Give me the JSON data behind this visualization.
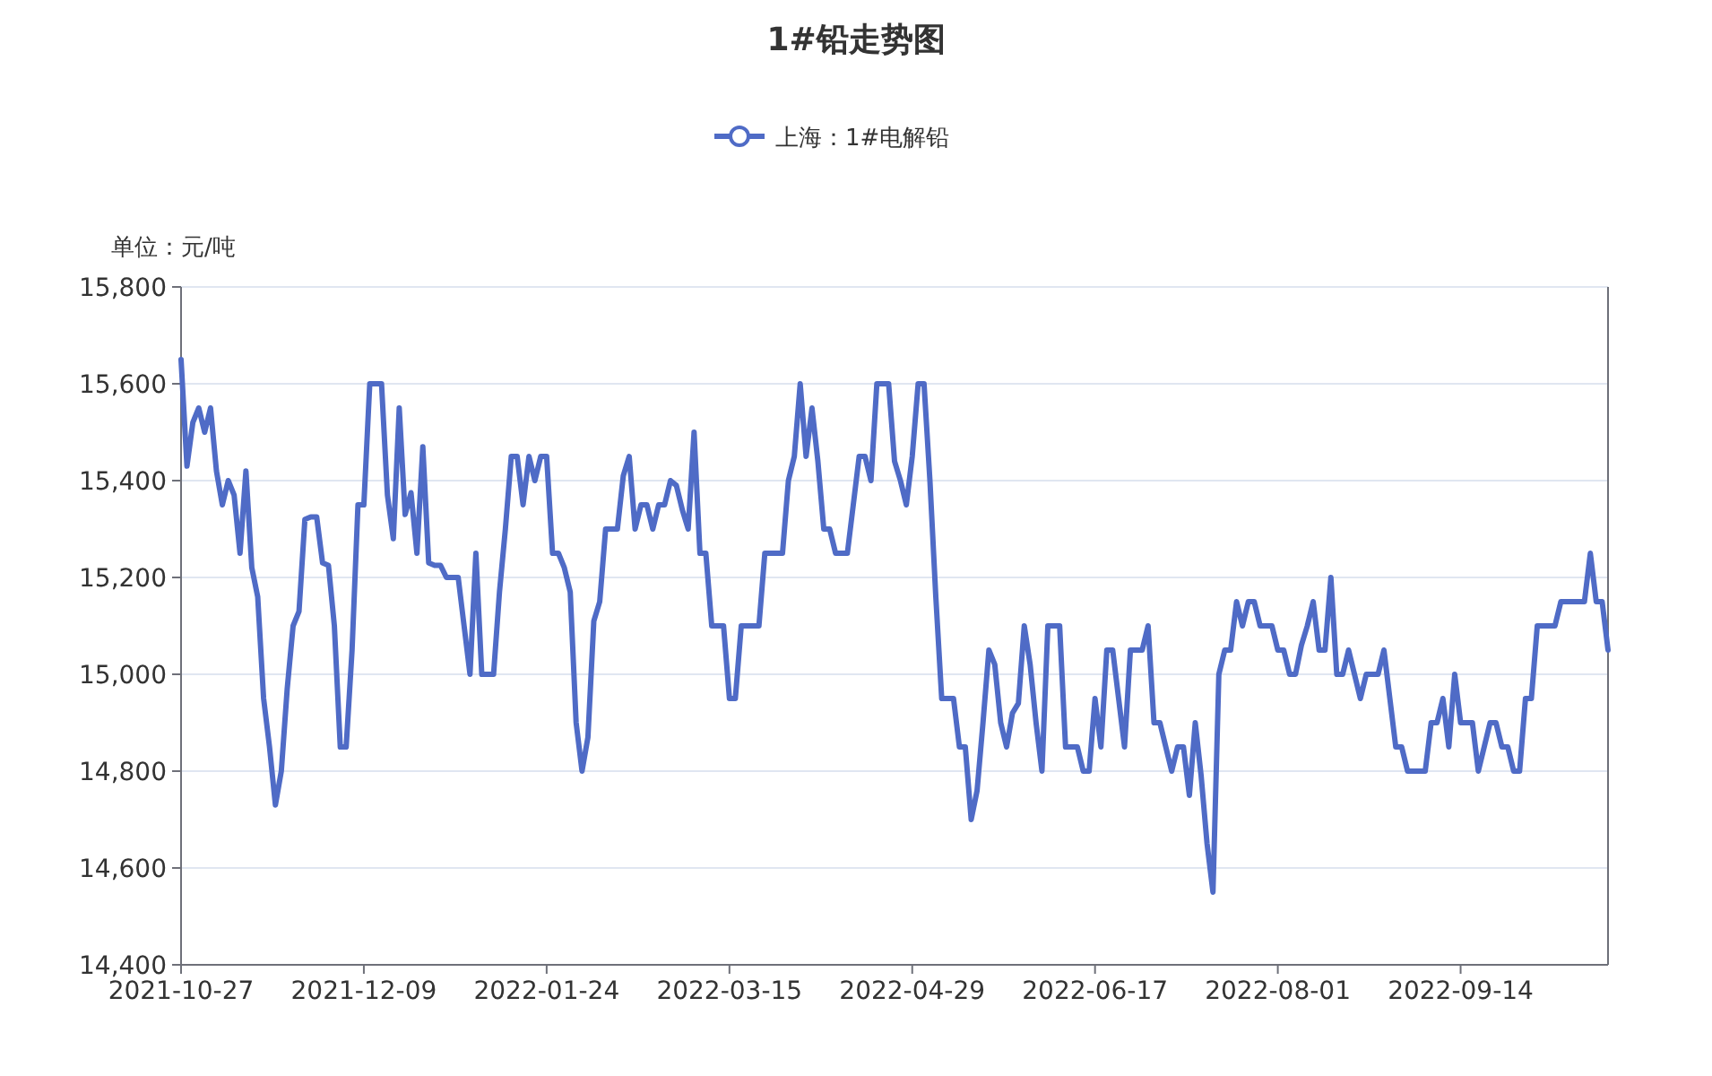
{
  "chart_data": {
    "type": "line",
    "title": "1#铅走势图",
    "ylabel": "单位：元/吨",
    "categories": [
      "2021-10-27",
      null,
      null,
      null,
      null,
      null,
      null,
      null,
      null,
      null,
      null,
      null,
      null,
      null,
      null,
      null,
      null,
      null,
      null,
      null,
      null,
      null,
      null,
      null,
      null,
      null,
      null,
      null,
      null,
      null,
      null,
      "2021-12-09",
      null,
      null,
      null,
      null,
      null,
      null,
      null,
      null,
      null,
      null,
      null,
      null,
      null,
      null,
      null,
      null,
      null,
      null,
      null,
      null,
      null,
      null,
      null,
      null,
      null,
      null,
      null,
      null,
      null,
      null,
      "2022-01-24",
      null,
      null,
      null,
      null,
      null,
      null,
      null,
      null,
      null,
      null,
      null,
      null,
      null,
      null,
      null,
      null,
      null,
      null,
      null,
      null,
      null,
      null,
      null,
      null,
      null,
      null,
      null,
      null,
      null,
      null,
      "2022-03-15",
      null,
      null,
      null,
      null,
      null,
      null,
      null,
      null,
      null,
      null,
      null,
      null,
      null,
      null,
      null,
      null,
      null,
      null,
      null,
      null,
      null,
      null,
      null,
      null,
      null,
      null,
      null,
      null,
      null,
      null,
      "2022-04-29",
      null,
      null,
      null,
      null,
      null,
      null,
      null,
      null,
      null,
      null,
      null,
      null,
      null,
      null,
      null,
      null,
      null,
      null,
      null,
      null,
      null,
      null,
      null,
      null,
      null,
      null,
      null,
      null,
      null,
      null,
      "2022-06-17",
      null,
      null,
      null,
      null,
      null,
      null,
      null,
      null,
      null,
      null,
      null,
      null,
      null,
      null,
      null,
      null,
      null,
      null,
      null,
      null,
      null,
      null,
      null,
      null,
      null,
      null,
      null,
      null,
      null,
      null,
      "2022-08-01",
      null,
      null,
      null,
      null,
      null,
      null,
      null,
      null,
      null,
      null,
      null,
      null,
      null,
      null,
      null,
      null,
      null,
      null,
      null,
      null,
      null,
      null,
      null,
      null,
      null,
      null,
      null,
      null,
      null,
      null,
      "2022-09-14",
      null,
      null,
      null,
      null,
      null,
      null,
      null,
      null,
      null,
      null,
      null,
      null,
      null,
      null,
      null,
      null,
      null,
      null,
      null,
      null,
      null,
      null,
      null,
      null,
      null
    ],
    "ylim": [
      14400,
      15800
    ],
    "yticks": [
      {
        "value": 14400,
        "label": "14,400"
      },
      {
        "value": 14600,
        "label": "14,600"
      },
      {
        "value": 14800,
        "label": "14,800"
      },
      {
        "value": 15000,
        "label": "15,000"
      },
      {
        "value": 15200,
        "label": "15,200"
      },
      {
        "value": 15400,
        "label": "15,400"
      },
      {
        "value": 15600,
        "label": "15,600"
      },
      {
        "value": 15800,
        "label": "15,800"
      }
    ],
    "grid": "y",
    "legend": "top",
    "line_style": "solid",
    "series": [
      {
        "name": "上海：1#电解铅",
        "color": "#4f6bc6",
        "values": [
          15650,
          15430,
          15520,
          15550,
          15500,
          15550,
          15420,
          15350,
          15400,
          15370,
          15250,
          15420,
          15220,
          15160,
          14950,
          14850,
          14730,
          14800,
          14970,
          15100,
          15130,
          15320,
          15325,
          15325,
          15230,
          15225,
          15100,
          14850,
          14850,
          15050,
          15350,
          15350,
          15600,
          15600,
          15600,
          15370,
          15280,
          15550,
          15330,
          15375,
          15250,
          15470,
          15230,
          15225,
          15225,
          15200,
          15200,
          15200,
          15100,
          15000,
          15250,
          15000,
          15000,
          15000,
          15170,
          15300,
          15450,
          15450,
          15350,
          15450,
          15400,
          15450,
          15450,
          15250,
          15250,
          15220,
          15170,
          14900,
          14800,
          14870,
          15110,
          15150,
          15300,
          15300,
          15300,
          15410,
          15450,
          15300,
          15350,
          15350,
          15300,
          15350,
          15350,
          15400,
          15390,
          15340,
          15300,
          15500,
          15250,
          15250,
          15100,
          15100,
          15100,
          14950,
          14950,
          15100,
          15100,
          15100,
          15100,
          15250,
          15250,
          15250,
          15250,
          15400,
          15450,
          15600,
          15450,
          15550,
          15440,
          15300,
          15300,
          15250,
          15250,
          15250,
          15350,
          15450,
          15450,
          15400,
          15600,
          15600,
          15600,
          15440,
          15400,
          15350,
          15450,
          15600,
          15600,
          15400,
          15160,
          14950,
          14950,
          14950,
          14850,
          14850,
          14700,
          14760,
          14900,
          15050,
          15020,
          14900,
          14850,
          14920,
          14940,
          15100,
          15020,
          14900,
          14800,
          15100,
          15100,
          15100,
          14850,
          14850,
          14850,
          14800,
          14800,
          14950,
          14850,
          15050,
          15050,
          14950,
          14850,
          15050,
          15050,
          15050,
          15100,
          14900,
          14900,
          14850,
          14800,
          14850,
          14850,
          14750,
          14900,
          14790,
          14650,
          14550,
          15000,
          15050,
          15050,
          15150,
          15100,
          15150,
          15150,
          15100,
          15100,
          15100,
          15050,
          15050,
          15000,
          15000,
          15060,
          15100,
          15150,
          15050,
          15050,
          15200,
          15000,
          15000,
          15050,
          15000,
          14950,
          15000,
          15000,
          15000,
          15050,
          14950,
          14850,
          14850,
          14800,
          14800,
          14800,
          14800,
          14900,
          14900,
          14950,
          14850,
          15000,
          14900,
          14900,
          14900,
          14800,
          14850,
          14900,
          14900,
          14850,
          14850,
          14800,
          14800,
          14950,
          14950,
          15100,
          15100,
          15100,
          15100,
          15150,
          15150,
          15150,
          15150,
          15150,
          15250,
          15150,
          15150,
          15050
        ]
      }
    ]
  }
}
